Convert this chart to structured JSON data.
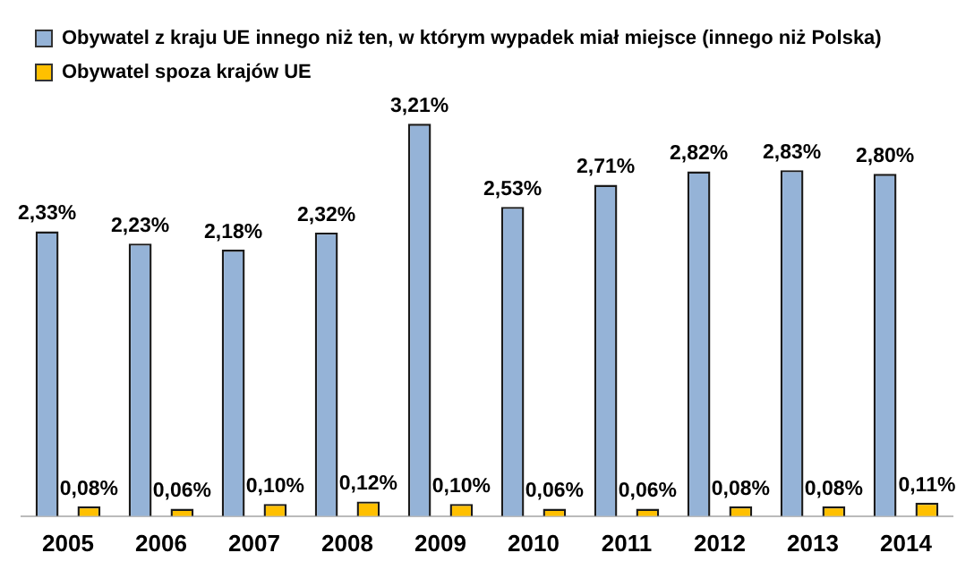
{
  "chart_data": {
    "type": "bar",
    "categories": [
      "2005",
      "2006",
      "2007",
      "2008",
      "2009",
      "2010",
      "2011",
      "2012",
      "2013",
      "2014"
    ],
    "series": [
      {
        "name": "Obywatel z kraju UE innego niż ten, w którym wypadek miał miejsce (innego niż Polska)",
        "color": "#95b3d7",
        "values": [
          2.33,
          2.23,
          2.18,
          2.32,
          3.21,
          2.53,
          2.71,
          2.82,
          2.83,
          2.8
        ],
        "value_labels": [
          "2,33%",
          "2,23%",
          "2,18%",
          "2,32%",
          "3,21%",
          "2,53%",
          "2,71%",
          "2,82%",
          "2,83%",
          "2,80%"
        ]
      },
      {
        "name": "Obywatel spoza krajów UE",
        "color": "#ffc000",
        "values": [
          0.08,
          0.06,
          0.1,
          0.12,
          0.1,
          0.06,
          0.06,
          0.08,
          0.08,
          0.11
        ],
        "value_labels": [
          "0,08%",
          "0,06%",
          "0,10%",
          "0,12%",
          "0,10%",
          "0,06%",
          "0,06%",
          "0,08%",
          "0,08%",
          "0,11%"
        ]
      }
    ],
    "grid": false,
    "legend": "top"
  }
}
